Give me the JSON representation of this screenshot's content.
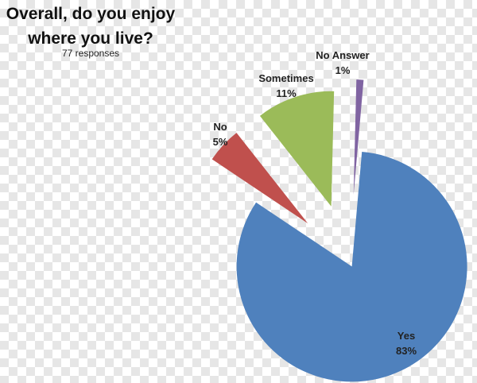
{
  "chart_data": {
    "type": "pie",
    "title_line1": "Overall, do you enjoy",
    "title_line2": "where you live?",
    "subtitle": "77 responses",
    "exploded": true,
    "slices": [
      {
        "name": "Yes",
        "value": 83,
        "label": "83%",
        "color": "#4F81BD"
      },
      {
        "name": "No",
        "value": 5,
        "label": "5%",
        "color": "#C0504D"
      },
      {
        "name": "Sometimes",
        "value": 11,
        "label": "11%",
        "color": "#9BBB59"
      },
      {
        "name": "No Answer",
        "value": 1,
        "label": "1%",
        "color": "#8064A2"
      }
    ]
  }
}
